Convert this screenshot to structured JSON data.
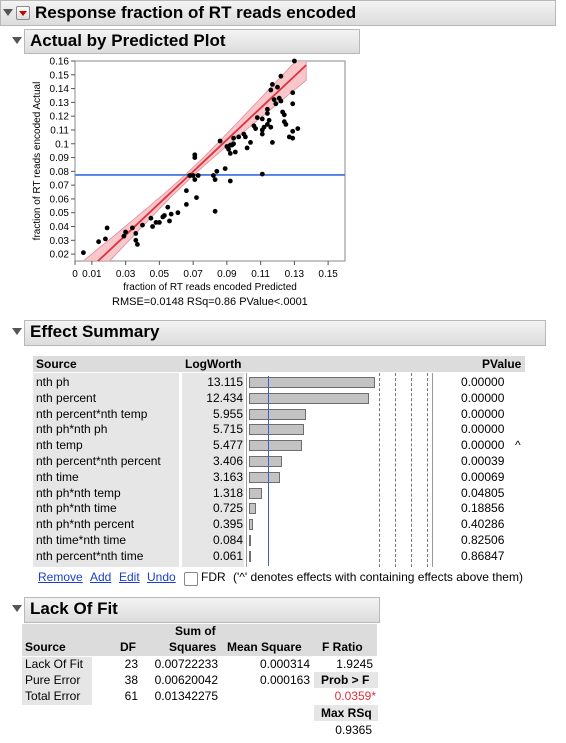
{
  "report": {
    "title": "Response fraction of RT reads encoded"
  },
  "plot_section": {
    "title": "Actual by Predicted Plot",
    "summary": "RMSE=0.0148 RSq=0.86 PValue<.0001"
  },
  "chart_data": {
    "type": "scatter",
    "title": "",
    "xlabel": "fraction of RT reads encoded Predicted",
    "ylabel": "fraction of RT reads encoded Actual",
    "xlim": [
      0,
      0.16
    ],
    "ylim": [
      0.015,
      0.16
    ],
    "x_ticks": [
      "0",
      "0.01",
      "0.03",
      "0.05",
      "0.07",
      "0.09",
      "0.11",
      "0.13",
      "0.15"
    ],
    "x_tick_values": [
      0,
      0.01,
      0.03,
      0.05,
      0.07,
      0.09,
      0.11,
      0.13,
      0.15
    ],
    "y_ticks": [
      "0.02",
      "0.03",
      "0.04",
      "0.05",
      "0.06",
      "0.07",
      "0.08",
      "0.09",
      "0.1",
      "0.11",
      "0.12",
      "0.13",
      "0.14",
      "0.15",
      "0.16"
    ],
    "y_tick_values": [
      0.02,
      0.03,
      0.04,
      0.05,
      0.06,
      0.07,
      0.08,
      0.09,
      0.1,
      0.11,
      0.12,
      0.13,
      0.14,
      0.15,
      0.16
    ],
    "mean_line": 0.0774,
    "fit_line": [
      [
        0.005,
        0.005
      ],
      [
        0.137,
        0.157
      ]
    ],
    "confidence_band_halfwidth": {
      "at_mean": 0.003,
      "at_ends": 0.011
    },
    "colors": {
      "points": "#000000",
      "fit": "#e0303a",
      "band": "#f4b4bb",
      "mean": "#4f7fe0"
    },
    "points": [
      [
        0.005,
        0.021
      ],
      [
        0.014,
        0.029
      ],
      [
        0.019,
        0.039
      ],
      [
        0.018,
        0.031
      ],
      [
        0.029,
        0.033
      ],
      [
        0.03,
        0.036
      ],
      [
        0.034,
        0.039
      ],
      [
        0.036,
        0.035
      ],
      [
        0.036,
        0.03
      ],
      [
        0.037,
        0.027
      ],
      [
        0.04,
        0.041
      ],
      [
        0.045,
        0.046
      ],
      [
        0.046,
        0.04
      ],
      [
        0.048,
        0.043
      ],
      [
        0.05,
        0.043
      ],
      [
        0.052,
        0.047
      ],
      [
        0.053,
        0.048
      ],
      [
        0.056,
        0.044
      ],
      [
        0.055,
        0.054
      ],
      [
        0.057,
        0.049
      ],
      [
        0.061,
        0.05
      ],
      [
        0.066,
        0.056
      ],
      [
        0.066,
        0.066
      ],
      [
        0.068,
        0.077
      ],
      [
        0.07,
        0.077
      ],
      [
        0.071,
        0.074
      ],
      [
        0.071,
        0.09
      ],
      [
        0.071,
        0.092
      ],
      [
        0.073,
        0.077
      ],
      [
        0.072,
        0.061
      ],
      [
        0.084,
        0.08
      ],
      [
        0.082,
        0.077
      ],
      [
        0.083,
        0.074
      ],
      [
        0.083,
        0.051
      ],
      [
        0.089,
        0.082
      ],
      [
        0.092,
        0.073
      ],
      [
        0.086,
        0.102
      ],
      [
        0.09,
        0.098
      ],
      [
        0.091,
        0.096
      ],
      [
        0.092,
        0.093
      ],
      [
        0.092,
        0.099
      ],
      [
        0.093,
        0.099
      ],
      [
        0.094,
        0.1
      ],
      [
        0.094,
        0.104
      ],
      [
        0.095,
        0.094
      ],
      [
        0.097,
        0.105
      ],
      [
        0.101,
        0.105
      ],
      [
        0.104,
        0.101
      ],
      [
        0.102,
        0.097
      ],
      [
        0.106,
        0.113
      ],
      [
        0.107,
        0.111
      ],
      [
        0.108,
        0.119
      ],
      [
        0.111,
        0.107
      ],
      [
        0.111,
        0.118
      ],
      [
        0.111,
        0.11
      ],
      [
        0.111,
        0.078
      ],
      [
        0.112,
        0.112
      ],
      [
        0.114,
        0.114
      ],
      [
        0.114,
        0.122
      ],
      [
        0.114,
        0.125
      ],
      [
        0.115,
        0.117
      ],
      [
        0.116,
        0.112
      ],
      [
        0.117,
        0.101
      ],
      [
        0.116,
        0.139
      ],
      [
        0.117,
        0.143
      ],
      [
        0.119,
        0.129
      ],
      [
        0.12,
        0.141
      ],
      [
        0.118,
        0.132
      ],
      [
        0.121,
        0.133
      ],
      [
        0.122,
        0.131
      ],
      [
        0.122,
        0.149
      ],
      [
        0.123,
        0.123
      ],
      [
        0.124,
        0.121
      ],
      [
        0.124,
        0.116
      ],
      [
        0.125,
        0.114
      ],
      [
        0.127,
        0.105
      ],
      [
        0.129,
        0.104
      ],
      [
        0.129,
        0.109
      ],
      [
        0.129,
        0.129
      ],
      [
        0.129,
        0.137
      ],
      [
        0.13,
        0.16
      ],
      [
        0.132,
        0.111
      ],
      [
        0.1,
        0.107
      ]
    ]
  },
  "effect_summary": {
    "title": "Effect Summary",
    "col_source": "Source",
    "col_logworth": "LogWorth",
    "col_pvalue": "PValue",
    "max_logworth": 14,
    "threshold_logworth": 2,
    "rows": [
      {
        "source": "nth ph",
        "logworth": "13.115",
        "value": 13.115,
        "pvalue": "0.00000",
        "flag": ""
      },
      {
        "source": "nth percent",
        "logworth": "12.434",
        "value": 12.434,
        "pvalue": "0.00000",
        "flag": ""
      },
      {
        "source": "nth percent*nth temp",
        "logworth": "5.955",
        "value": 5.955,
        "pvalue": "0.00000",
        "flag": ""
      },
      {
        "source": "nth ph*nth ph",
        "logworth": "5.715",
        "value": 5.715,
        "pvalue": "0.00000",
        "flag": ""
      },
      {
        "source": "nth temp",
        "logworth": "5.477",
        "value": 5.477,
        "pvalue": "0.00000",
        "flag": "^"
      },
      {
        "source": "nth percent*nth percent",
        "logworth": "3.406",
        "value": 3.406,
        "pvalue": "0.00039",
        "flag": ""
      },
      {
        "source": "nth time",
        "logworth": "3.163",
        "value": 3.163,
        "pvalue": "0.00069",
        "flag": ""
      },
      {
        "source": "nth ph*nth temp",
        "logworth": "1.318",
        "value": 1.318,
        "pvalue": "0.04805",
        "flag": ""
      },
      {
        "source": "nth ph*nth time",
        "logworth": "0.725",
        "value": 0.725,
        "pvalue": "0.18856",
        "flag": ""
      },
      {
        "source": "nth ph*nth percent",
        "logworth": "0.395",
        "value": 0.395,
        "pvalue": "0.40286",
        "flag": ""
      },
      {
        "source": "nth time*nth time",
        "logworth": "0.084",
        "value": 0.084,
        "pvalue": "0.82506",
        "flag": ""
      },
      {
        "source": "nth percent*nth time",
        "logworth": "0.061",
        "value": 0.061,
        "pvalue": "0.86847",
        "flag": ""
      }
    ],
    "actions": {
      "remove": "Remove",
      "add": "Add",
      "edit": "Edit",
      "undo": "Undo",
      "fdr": "FDR"
    },
    "note": "('^' denotes effects with containing effects above them)"
  },
  "lack_of_fit": {
    "title": "Lack Of Fit",
    "headers": {
      "source": "Source",
      "df": "DF",
      "ss_top": "Sum of",
      "ss_bottom": "Squares",
      "ms": "Mean Square",
      "f": "F Ratio"
    },
    "rows": [
      {
        "source": "Lack Of Fit",
        "df": "23",
        "ss": "0.00722233",
        "ms": "0.000314",
        "f": "1.9245"
      },
      {
        "source": "Pure Error",
        "df": "38",
        "ss": "0.00620042",
        "ms": "0.000163",
        "f": "Prob > F"
      },
      {
        "source": "Total Error",
        "df": "61",
        "ss": "0.01342275",
        "ms": "",
        "f": "0.0359*"
      }
    ],
    "max_rsq_label": "Max RSq",
    "max_rsq": "0.9365"
  }
}
